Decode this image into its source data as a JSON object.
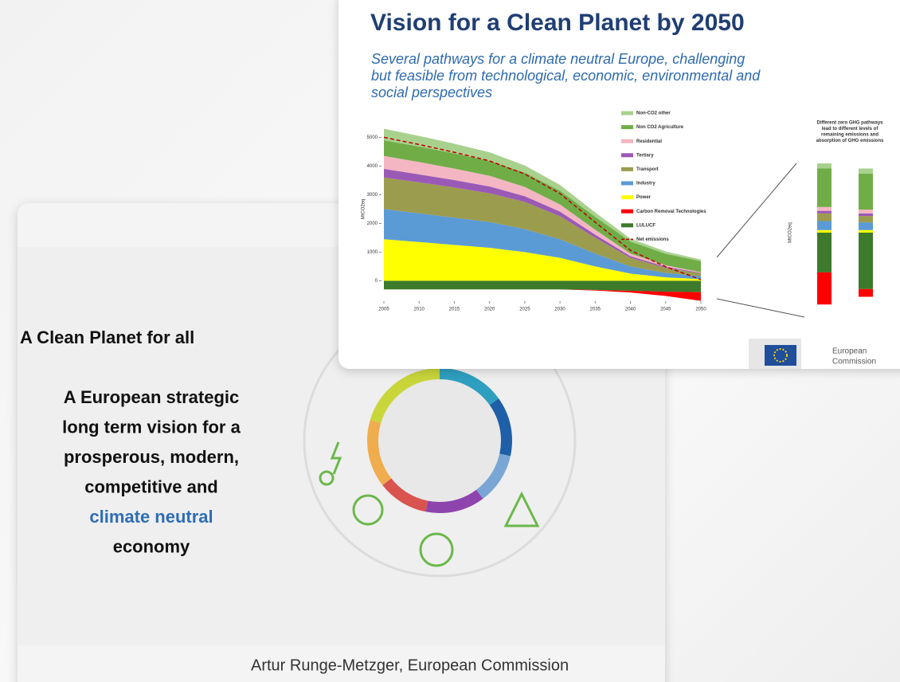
{
  "slide1": {
    "title": "A Clean Planet for all",
    "lines": [
      "A European strategic",
      "long term vision for a",
      "prosperous, modern,",
      "competitive and",
      "climate neutral",
      "economy"
    ],
    "author": "Artur Runge-Metzger, European Commission"
  },
  "slide2": {
    "title": "Vision for a Clean Planet by 2050",
    "subtitle_lines": [
      "Several pathways for a climate neutral Europe, challenging",
      "but feasible from technological, economic, environmental and",
      "social perspectives"
    ],
    "chart": {
      "type": "area",
      "y_label": "MtCO2eq",
      "x": [
        2005,
        2010,
        2015,
        2020,
        2025,
        2030,
        2035,
        2040,
        2045,
        2050
      ],
      "xlim": [
        2005,
        2050
      ],
      "xticks": [
        2005,
        2010,
        2015,
        2020,
        2025,
        2030,
        2035,
        2040,
        2045,
        2050
      ],
      "ylim": [
        -600,
        5400
      ],
      "yticks": [
        0,
        1000,
        2000,
        3000,
        4000,
        5000
      ],
      "series": [
        {
          "name": "Non-CO2 other",
          "color": "#a9d18e",
          "values": [
            400,
            370,
            340,
            300,
            250,
            200,
            150,
            100,
            80,
            60
          ]
        },
        {
          "name": "Non CO2 Agriculture",
          "color": "#70ad47",
          "values": [
            550,
            540,
            530,
            520,
            500,
            480,
            450,
            420,
            400,
            380
          ]
        },
        {
          "name": "Residential",
          "color": "#f4b6c2",
          "values": [
            450,
            430,
            400,
            370,
            320,
            250,
            170,
            90,
            50,
            20
          ]
        },
        {
          "name": "Tertiary",
          "color": "#9b59b6",
          "values": [
            300,
            280,
            260,
            240,
            200,
            160,
            110,
            60,
            40,
            20
          ]
        },
        {
          "name": "Transport",
          "color": "#9c9c4e",
          "values": [
            1100,
            1080,
            1050,
            1000,
            950,
            800,
            550,
            300,
            180,
            100
          ]
        },
        {
          "name": "Industry",
          "color": "#5b9bd5",
          "values": [
            1050,
            1000,
            950,
            900,
            800,
            650,
            450,
            250,
            150,
            100
          ]
        },
        {
          "name": "Power",
          "color": "#ffff00",
          "values": [
            1450,
            1350,
            1250,
            1150,
            1000,
            800,
            500,
            250,
            120,
            60
          ]
        },
        {
          "name": "Carbon Removal Technologies",
          "color": "#ff0000",
          "values": [
            0,
            0,
            0,
            0,
            0,
            0,
            -20,
            -60,
            -150,
            -300
          ]
        },
        {
          "name": "LULUCF",
          "color": "#3d7a2b",
          "values": [
            -300,
            -300,
            -300,
            -300,
            -300,
            -300,
            -320,
            -350,
            -380,
            -400
          ]
        },
        {
          "name": "Net emissions",
          "color": "#c00000",
          "kind": "line",
          "values": [
            5000,
            4750,
            4480,
            4180,
            3720,
            3040,
            2040,
            1060,
            490,
            40
          ]
        }
      ]
    },
    "side_chart": {
      "type": "bar",
      "y_label": "MtCO2eq",
      "note_lines": [
        "Different zero GHG pathways",
        "lead to different levels of",
        "remaining emissions and",
        "absorption of GHG emissions"
      ],
      "bars": [
        [
          40,
          300,
          30,
          20,
          60,
          70,
          20,
          -250,
          -310
        ],
        [
          40,
          280,
          30,
          20,
          50,
          60,
          20,
          -60,
          -440
        ]
      ]
    },
    "logo": [
      "European",
      "Commission"
    ]
  }
}
